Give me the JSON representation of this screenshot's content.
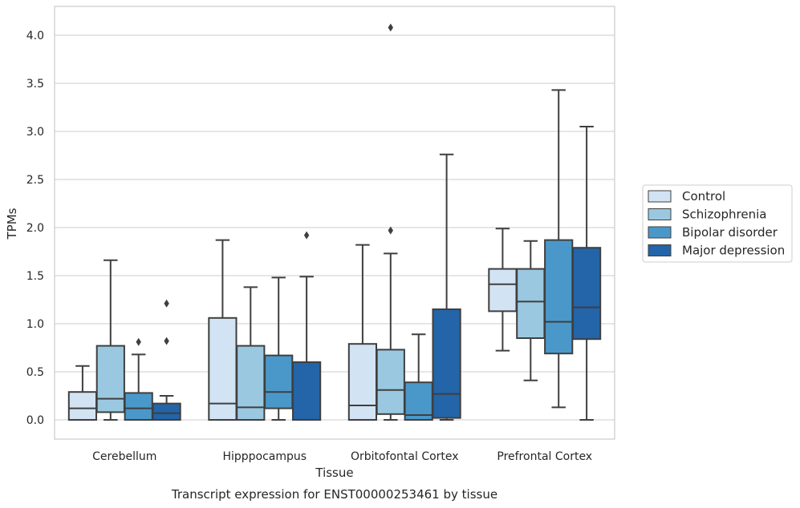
{
  "chart_data": {
    "type": "boxplot",
    "caption": "Transcript expression for ENST00000253461 by tissue",
    "xlabel": "Tissue",
    "ylabel": "TPMs",
    "ylim": [
      -0.2,
      4.3
    ],
    "yticks": [
      "0.0",
      "0.5",
      "1.0",
      "1.5",
      "2.0",
      "2.5",
      "3.0",
      "3.5",
      "4.0"
    ],
    "grid": true,
    "legend_position": "right",
    "categories": [
      "Cerebellum",
      "Hipppocampus",
      "Orbitofontal Cortex",
      "Prefrontal Cortex"
    ],
    "series": [
      {
        "name": "Control",
        "color": "#d2e3f3",
        "boxes": [
          {
            "min": 0.0,
            "q1": 0.0,
            "median": 0.12,
            "q3": 0.29,
            "max": 0.56,
            "outliers": []
          },
          {
            "min": 0.0,
            "q1": 0.0,
            "median": 0.17,
            "q3": 1.06,
            "max": 1.87,
            "outliers": []
          },
          {
            "min": 0.0,
            "q1": 0.0,
            "median": 0.15,
            "q3": 0.79,
            "max": 1.82,
            "outliers": []
          },
          {
            "min": 0.72,
            "q1": 1.13,
            "median": 1.41,
            "q3": 1.57,
            "max": 1.99,
            "outliers": []
          }
        ]
      },
      {
        "name": "Schizophrenia",
        "color": "#9ac8e0",
        "boxes": [
          {
            "min": 0.0,
            "q1": 0.08,
            "median": 0.22,
            "q3": 0.77,
            "max": 1.66,
            "outliers": []
          },
          {
            "min": 0.0,
            "q1": 0.0,
            "median": 0.13,
            "q3": 0.77,
            "max": 1.38,
            "outliers": []
          },
          {
            "min": 0.0,
            "q1": 0.06,
            "median": 0.31,
            "q3": 0.73,
            "max": 1.73,
            "outliers": [
              1.97,
              4.08
            ]
          },
          {
            "min": 0.41,
            "q1": 0.85,
            "median": 1.23,
            "q3": 1.57,
            "max": 1.86,
            "outliers": []
          }
        ]
      },
      {
        "name": "Bipolar disorder",
        "color": "#4a98c9",
        "boxes": [
          {
            "min": 0.0,
            "q1": 0.0,
            "median": 0.12,
            "q3": 0.28,
            "max": 0.68,
            "outliers": [
              0.81
            ]
          },
          {
            "min": 0.0,
            "q1": 0.12,
            "median": 0.29,
            "q3": 0.67,
            "max": 1.48,
            "outliers": []
          },
          {
            "min": 0.0,
            "q1": 0.0,
            "median": 0.05,
            "q3": 0.39,
            "max": 0.89,
            "outliers": []
          },
          {
            "min": 0.13,
            "q1": 0.69,
            "median": 1.02,
            "q3": 1.87,
            "max": 3.43,
            "outliers": []
          }
        ]
      },
      {
        "name": "Major depression",
        "color": "#2365a8",
        "boxes": [
          {
            "min": 0.0,
            "q1": 0.0,
            "median": 0.07,
            "q3": 0.17,
            "max": 0.25,
            "outliers": [
              0.82,
              1.21
            ]
          },
          {
            "min": 0.0,
            "q1": 0.0,
            "median": 0.0,
            "q3": 0.6,
            "max": 1.49,
            "outliers": [
              1.92
            ]
          },
          {
            "min": 0.0,
            "q1": 0.02,
            "median": 0.27,
            "q3": 1.15,
            "max": 2.76,
            "outliers": []
          },
          {
            "min": 0.0,
            "q1": 0.84,
            "median": 1.17,
            "q3": 1.79,
            "max": 3.05,
            "outliers": []
          }
        ]
      }
    ]
  }
}
